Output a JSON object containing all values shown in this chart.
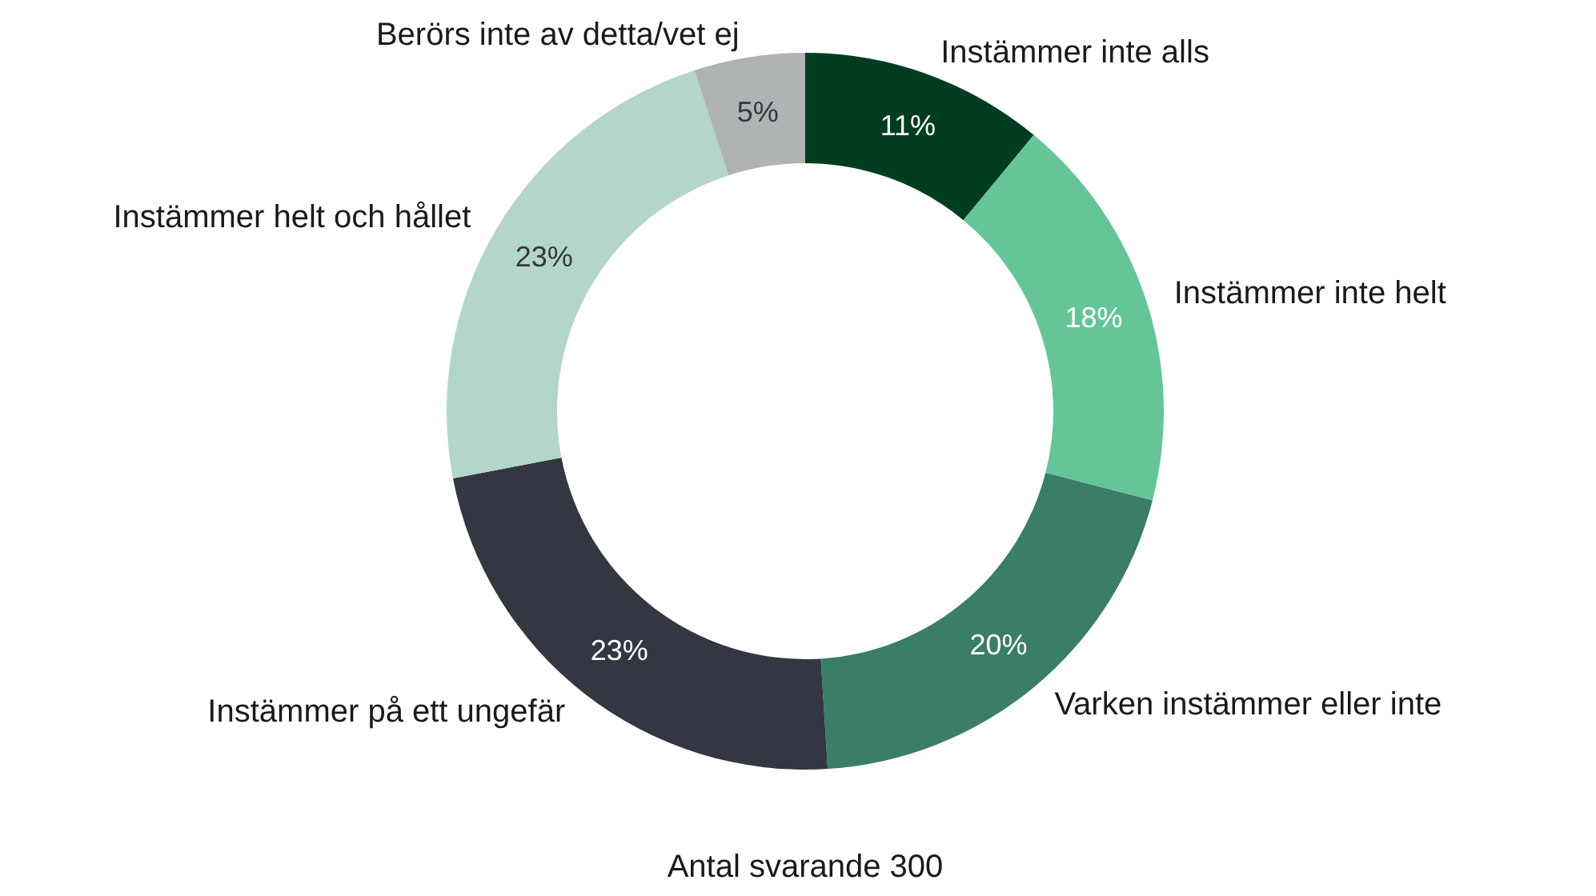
{
  "chart_data": {
    "type": "donut",
    "categories": [
      "Instämmer inte alls",
      "Instämmer inte helt",
      "Varken instämmer eller inte",
      "Instämmer på ett ungefär",
      "Instämmer helt och hållet",
      "Berörs inte av detta/vet ej"
    ],
    "values": [
      11,
      18,
      20,
      23,
      23,
      5
    ],
    "colors": [
      "#003d20",
      "#66c598",
      "#3a7d68",
      "#333742",
      "#b4d6c9",
      "#b0b3b3"
    ],
    "value_labels": [
      "11%",
      "18%",
      "20%",
      "23%",
      "23%",
      "5%"
    ],
    "annotations": [
      "Antal svarande 300"
    ]
  }
}
